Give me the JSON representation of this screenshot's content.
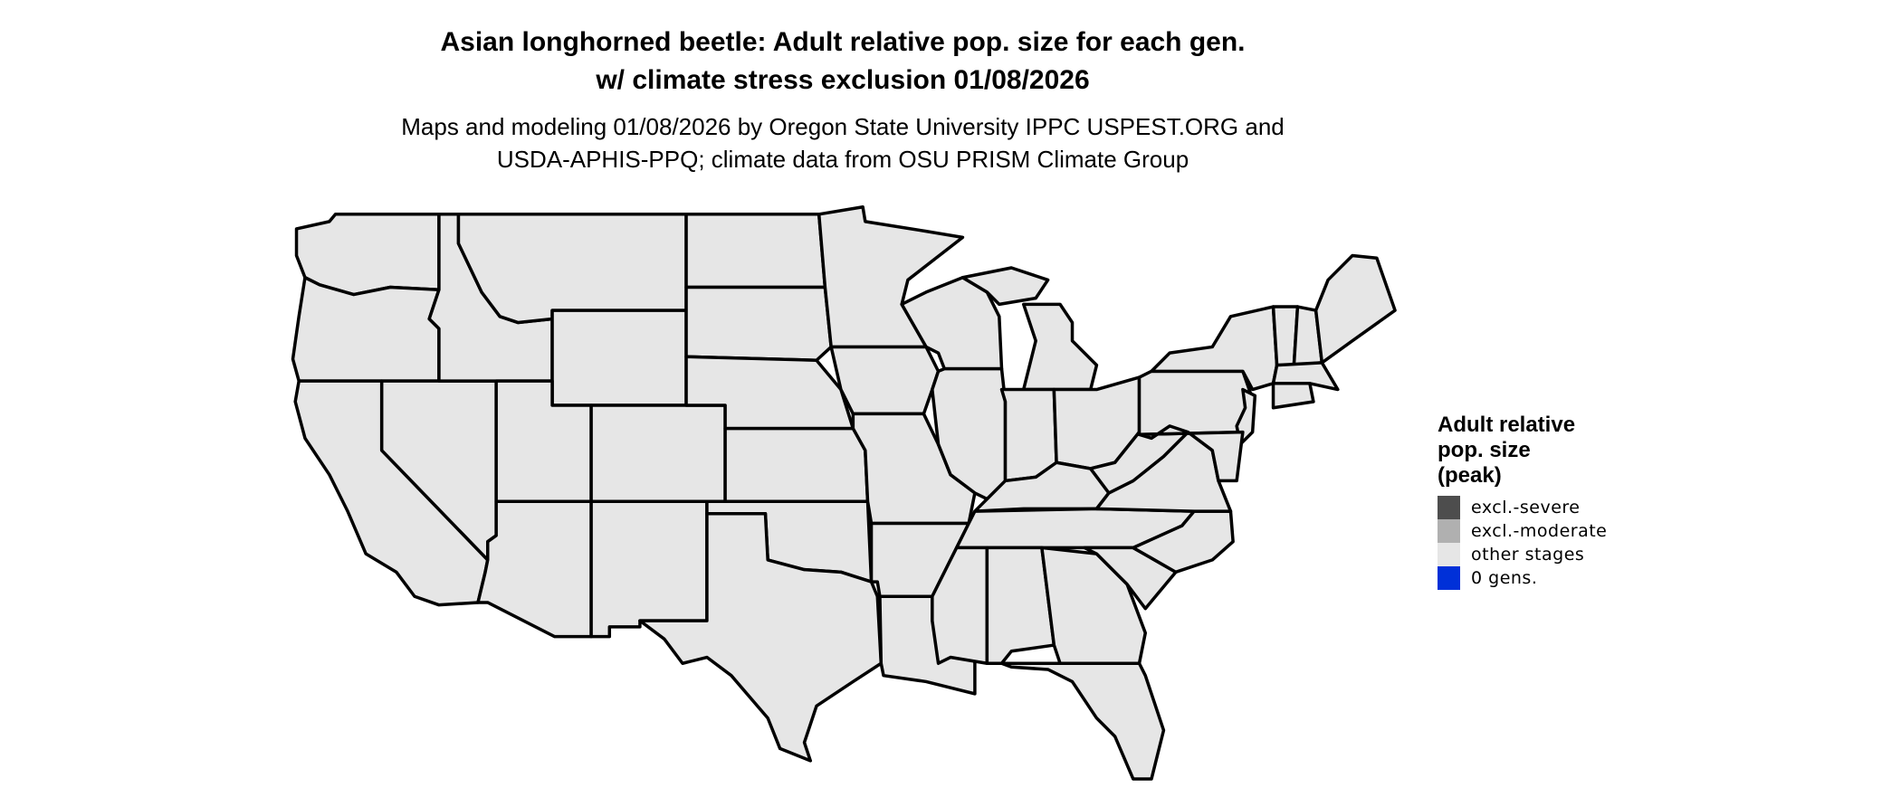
{
  "title_line1": "Asian longhorned beetle: Adult relative pop. size for each gen.",
  "title_line2": "w/ climate stress exclusion 01/08/2026",
  "subtitle_line1": "Maps and modeling 01/08/2026 by Oregon State University IPPC USPEST.ORG and",
  "subtitle_line2": "USDA-APHIS-PPQ; climate data from OSU PRISM Climate Group",
  "map": {
    "region": "contiguous United States",
    "fill_color": "#e6e6e6",
    "border_color": "#000000",
    "displayed_category": "other stages"
  },
  "legend": {
    "title_line1": "Adult relative",
    "title_line2": "pop. size",
    "title_line3": "(peak)",
    "items": [
      {
        "label": "excl.-severe",
        "color": "#4d4d4d"
      },
      {
        "label": "excl.-moderate",
        "color": "#b0b0b0"
      },
      {
        "label": "other stages",
        "color": "#e6e6e6"
      },
      {
        "label": "0 gens.",
        "color": "#0030d8"
      }
    ]
  }
}
